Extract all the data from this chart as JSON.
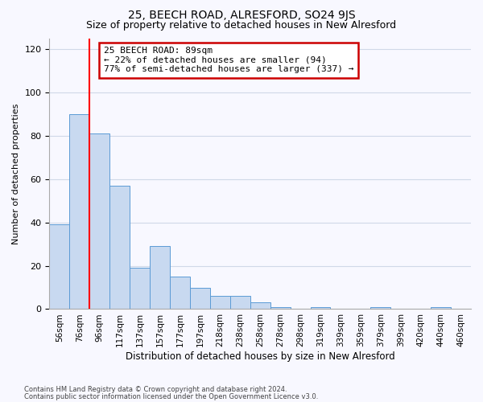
{
  "title": "25, BEECH ROAD, ALRESFORD, SO24 9JS",
  "subtitle": "Size of property relative to detached houses in New Alresford",
  "xlabel": "Distribution of detached houses by size in New Alresford",
  "ylabel": "Number of detached properties",
  "categories": [
    "56sqm",
    "76sqm",
    "96sqm",
    "117sqm",
    "137sqm",
    "157sqm",
    "177sqm",
    "197sqm",
    "218sqm",
    "238sqm",
    "258sqm",
    "278sqm",
    "298sqm",
    "319sqm",
    "339sqm",
    "359sqm",
    "379sqm",
    "399sqm",
    "420sqm",
    "440sqm",
    "460sqm"
  ],
  "values": [
    39,
    90,
    81,
    57,
    19,
    29,
    15,
    10,
    6,
    6,
    3,
    1,
    0,
    1,
    0,
    0,
    1,
    0,
    0,
    1,
    0
  ],
  "bar_color": "#c8d9f0",
  "bar_edge_color": "#5b9bd5",
  "red_line_x": 1.5,
  "annotation_text_line1": "25 BEECH ROAD: 89sqm",
  "annotation_text_line2": "← 22% of detached houses are smaller (94)",
  "annotation_text_line3": "77% of semi-detached houses are larger (337) →",
  "annotation_box_color": "#ffffff",
  "annotation_box_edge": "#cc0000",
  "ylim": [
    0,
    125
  ],
  "yticks": [
    0,
    20,
    40,
    60,
    80,
    100,
    120
  ],
  "footer1": "Contains HM Land Registry data © Crown copyright and database right 2024.",
  "footer2": "Contains public sector information licensed under the Open Government Licence v3.0.",
  "bg_color": "#f8f8ff",
  "grid_color": "#d0d8e8",
  "title_fontsize": 10,
  "subtitle_fontsize": 9,
  "annotation_fontsize": 8,
  "ylabel_fontsize": 8,
  "xlabel_fontsize": 8.5
}
